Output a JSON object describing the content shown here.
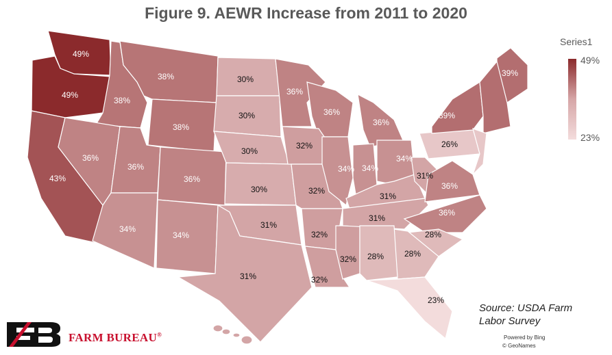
{
  "title": "Figure 9. AEWR Increase from 2011 to 2020",
  "legend": {
    "series_name": "Series1",
    "max_label": "49%",
    "min_label": "23%"
  },
  "source": "Source: USDA Farm Labor Survey",
  "powered_by": "Powered by Bing",
  "attribution": "© GeoNames",
  "brand": "FARM BUREAU",
  "brand_mark": "®",
  "colors": {
    "max": "#8b2a2c",
    "min": "#f3dcdc"
  },
  "regions": [
    {
      "name": "WA",
      "value": "49%"
    },
    {
      "name": "OR",
      "value": "49%"
    },
    {
      "name": "CA",
      "value": "43%"
    },
    {
      "name": "ID",
      "value": "38%"
    },
    {
      "name": "MT",
      "value": "38%"
    },
    {
      "name": "WY",
      "value": "38%"
    },
    {
      "name": "NV",
      "value": "36%"
    },
    {
      "name": "UT",
      "value": "36%"
    },
    {
      "name": "CO",
      "value": "36%"
    },
    {
      "name": "AZ",
      "value": "34%"
    },
    {
      "name": "NM",
      "value": "34%"
    },
    {
      "name": "ND",
      "value": "30%"
    },
    {
      "name": "SD",
      "value": "30%"
    },
    {
      "name": "NE",
      "value": "30%"
    },
    {
      "name": "KS",
      "value": "30%"
    },
    {
      "name": "OK",
      "value": "31%"
    },
    {
      "name": "TX",
      "value": "31%"
    },
    {
      "name": "MN",
      "value": "36%"
    },
    {
      "name": "WI",
      "value": "36%"
    },
    {
      "name": "MI",
      "value": "36%"
    },
    {
      "name": "IA",
      "value": "32%"
    },
    {
      "name": "MO",
      "value": "32%"
    },
    {
      "name": "AR",
      "value": "32%"
    },
    {
      "name": "LA",
      "value": "32%"
    },
    {
      "name": "MS",
      "value": "32%"
    },
    {
      "name": "IL",
      "value": "34%"
    },
    {
      "name": "IN",
      "value": "34%"
    },
    {
      "name": "OH",
      "value": "34%"
    },
    {
      "name": "KY",
      "value": "31%"
    },
    {
      "name": "TN",
      "value": "31%"
    },
    {
      "name": "WV",
      "value": "31%"
    },
    {
      "name": "VA",
      "value": "36%"
    },
    {
      "name": "NC",
      "value": "36%"
    },
    {
      "name": "SC",
      "value": "28%"
    },
    {
      "name": "GA",
      "value": "28%"
    },
    {
      "name": "AL",
      "value": "28%"
    },
    {
      "name": "FL",
      "value": "23%"
    },
    {
      "name": "PA",
      "value": "26%"
    },
    {
      "name": "NY",
      "value": "39%"
    },
    {
      "name": "ME",
      "value": "39%"
    }
  ]
}
